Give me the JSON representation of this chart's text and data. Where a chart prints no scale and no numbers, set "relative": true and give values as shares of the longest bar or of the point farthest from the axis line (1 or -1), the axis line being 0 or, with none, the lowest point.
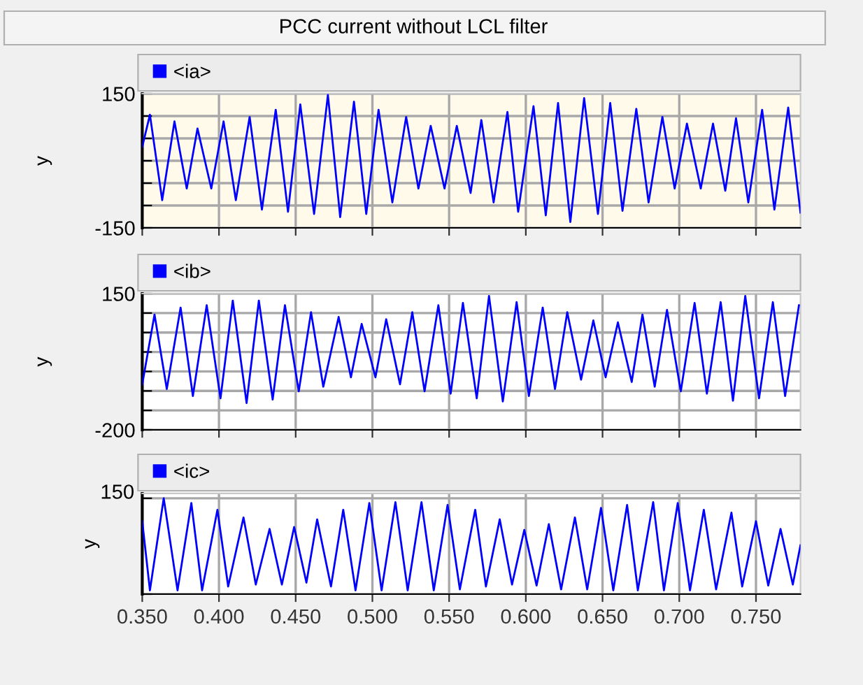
{
  "chart_data": [
    {
      "type": "line",
      "title": "PCC current without LCL filter",
      "ylabel": "y",
      "legend": "top left",
      "grid": true,
      "tick_labels": "y",
      "xlim": [
        0.35,
        0.779
      ],
      "ylim": [
        -150,
        150
      ],
      "xticks": [
        {
          "value": 0.35,
          "label": null
        },
        {
          "value": 0.4,
          "label": null
        },
        {
          "value": 0.45,
          "label": null
        },
        {
          "value": 0.5,
          "label": null
        },
        {
          "value": 0.55,
          "label": null
        },
        {
          "value": 0.6,
          "label": null
        },
        {
          "value": 0.65,
          "label": null
        },
        {
          "value": 0.7,
          "label": null
        },
        {
          "value": 0.75,
          "label": null
        }
      ],
      "yticks": [
        150,
        {
          "value": 100,
          "label": null
        },
        {
          "value": 50,
          "label": null
        },
        {
          "value": 0,
          "label": null
        },
        {
          "value": -50,
          "label": null
        },
        {
          "value": -100,
          "label": null
        },
        -150
      ],
      "x": [
        0.35,
        0.355,
        0.363,
        0.371,
        0.379,
        0.386,
        0.395,
        0.403,
        0.411,
        0.42,
        0.428,
        0.437,
        0.445,
        0.453,
        0.462,
        0.471,
        0.479,
        0.488,
        0.496,
        0.504,
        0.513,
        0.522,
        0.53,
        0.538,
        0.547,
        0.555,
        0.564,
        0.571,
        0.579,
        0.588,
        0.595,
        0.605,
        0.613,
        0.621,
        0.629,
        0.638,
        0.647,
        0.655,
        0.663,
        0.672,
        0.68,
        0.689,
        0.697,
        0.705,
        0.714,
        0.722,
        0.73,
        0.737,
        0.745,
        0.754,
        0.762,
        0.771,
        0.779
      ],
      "series": [
        {
          "name": "<ia>",
          "color": "#0000ff",
          "values": [
            31,
            103,
            -88,
            88,
            -62,
            72,
            -62,
            88,
            -88,
            98,
            -109,
            114,
            -114,
            126,
            -119,
            147,
            -126,
            132,
            -119,
            114,
            -93,
            98,
            -62,
            78,
            -62,
            78,
            -72,
            91,
            -93,
            109,
            -114,
            122,
            -122,
            129,
            -137,
            140,
            -119,
            129,
            -112,
            116,
            -93,
            98,
            -62,
            83,
            -62,
            83,
            -67,
            95,
            -93,
            114,
            -109,
            119,
            -116
          ]
        }
      ]
    },
    {
      "type": "line",
      "ylabel": "y",
      "legend": "top left",
      "grid": true,
      "tick_labels": "y",
      "xlim": [
        0.35,
        0.779
      ],
      "ylim": [
        -200,
        150
      ],
      "xticks": [
        {
          "value": 0.35,
          "label": null
        },
        {
          "value": 0.4,
          "label": null
        },
        {
          "value": 0.45,
          "label": null
        },
        {
          "value": 0.5,
          "label": null
        },
        {
          "value": 0.55,
          "label": null
        },
        {
          "value": 0.6,
          "label": null
        },
        {
          "value": 0.65,
          "label": null
        },
        {
          "value": 0.7,
          "label": null
        },
        {
          "value": 0.75,
          "label": null
        }
      ],
      "yticks": [
        150,
        {
          "value": 100,
          "label": null
        },
        {
          "value": 50,
          "label": null
        },
        {
          "value": 0,
          "label": null
        },
        {
          "value": -50,
          "label": null
        },
        {
          "value": -100,
          "label": null
        },
        {
          "value": -150,
          "label": null
        },
        -200
      ],
      "x": [
        0.35,
        0.358,
        0.366,
        0.375,
        0.383,
        0.392,
        0.401,
        0.409,
        0.418,
        0.426,
        0.435,
        0.443,
        0.452,
        0.46,
        0.468,
        0.478,
        0.486,
        0.493,
        0.502,
        0.509,
        0.518,
        0.526,
        0.534,
        0.543,
        0.551,
        0.559,
        0.568,
        0.576,
        0.585,
        0.594,
        0.602,
        0.611,
        0.619,
        0.627,
        0.636,
        0.644,
        0.652,
        0.66,
        0.669,
        0.676,
        0.684,
        0.692,
        0.701,
        0.71,
        0.718,
        0.727,
        0.735,
        0.743,
        0.752,
        0.761,
        0.769,
        0.778
      ],
      "series": [
        {
          "name": "<ib>",
          "color": "#0000ff",
          "values": [
            -83,
            96,
            -95,
            114,
            -113,
            120,
            -119,
            132,
            -131,
            132,
            -122,
            120,
            -101,
            102,
            -89,
            90,
            -65,
            72,
            -65,
            84,
            -83,
            102,
            -101,
            120,
            -107,
            126,
            -119,
            144,
            -127,
            128,
            -113,
            114,
            -95,
            102,
            -71,
            81,
            -65,
            76,
            -77,
            96,
            -89,
            108,
            -101,
            126,
            -107,
            128,
            -125,
            144,
            -119,
            128,
            -113,
            120
          ]
        }
      ]
    },
    {
      "type": "line",
      "ylabel": "y",
      "legend": "top left",
      "grid": true,
      "relative": true,
      "annotations": [
        "150"
      ],
      "xlim": [
        0.35,
        0.779
      ],
      "xticks": [
        {
          "value": 0.35,
          "label": "0.350"
        },
        {
          "value": 0.4,
          "label": "0.400"
        },
        {
          "value": 0.45,
          "label": "0.450"
        },
        {
          "value": 0.5,
          "label": "0.500"
        },
        {
          "value": 0.55,
          "label": "0.550"
        },
        {
          "value": 0.6,
          "label": "0.600"
        },
        {
          "value": 0.65,
          "label": "0.650"
        },
        {
          "value": 0.7,
          "label": "0.700"
        },
        {
          "value": 0.75,
          "label": "0.750"
        }
      ],
      "x": [
        0.35,
        0.355,
        0.364,
        0.373,
        0.382,
        0.389,
        0.399,
        0.406,
        0.416,
        0.424,
        0.433,
        0.441,
        0.449,
        0.457,
        0.464,
        0.473,
        0.481,
        0.489,
        0.498,
        0.506,
        0.515,
        0.523,
        0.532,
        0.54,
        0.549,
        0.557,
        0.567,
        0.574,
        0.583,
        0.591,
        0.599,
        0.607,
        0.615,
        0.623,
        0.632,
        0.64,
        0.649,
        0.657,
        0.666,
        0.673,
        0.683,
        0.69,
        0.699,
        0.707,
        0.716,
        0.724,
        0.734,
        0.741,
        0.75,
        0.758,
        0.766,
        0.774,
        0.779
      ],
      "series": [
        {
          "name": "<ic>",
          "color": "#0000ff",
          "values": [
            0.76,
            0.04,
            1.0,
            0.04,
            0.95,
            0.04,
            0.88,
            0.08,
            0.8,
            0.1,
            0.68,
            0.1,
            0.7,
            0.12,
            0.78,
            0.08,
            0.88,
            0.04,
            0.95,
            0.04,
            0.96,
            0.04,
            0.96,
            0.04,
            0.93,
            0.05,
            0.88,
            0.08,
            0.78,
            0.1,
            0.67,
            0.09,
            0.73,
            0.05,
            0.8,
            0.05,
            0.9,
            0.04,
            0.93,
            0.04,
            0.96,
            0.04,
            0.95,
            0.04,
            0.88,
            0.05,
            0.85,
            0.08,
            0.76,
            0.09,
            0.68,
            0.1,
            0.51
          ]
        }
      ]
    }
  ]
}
